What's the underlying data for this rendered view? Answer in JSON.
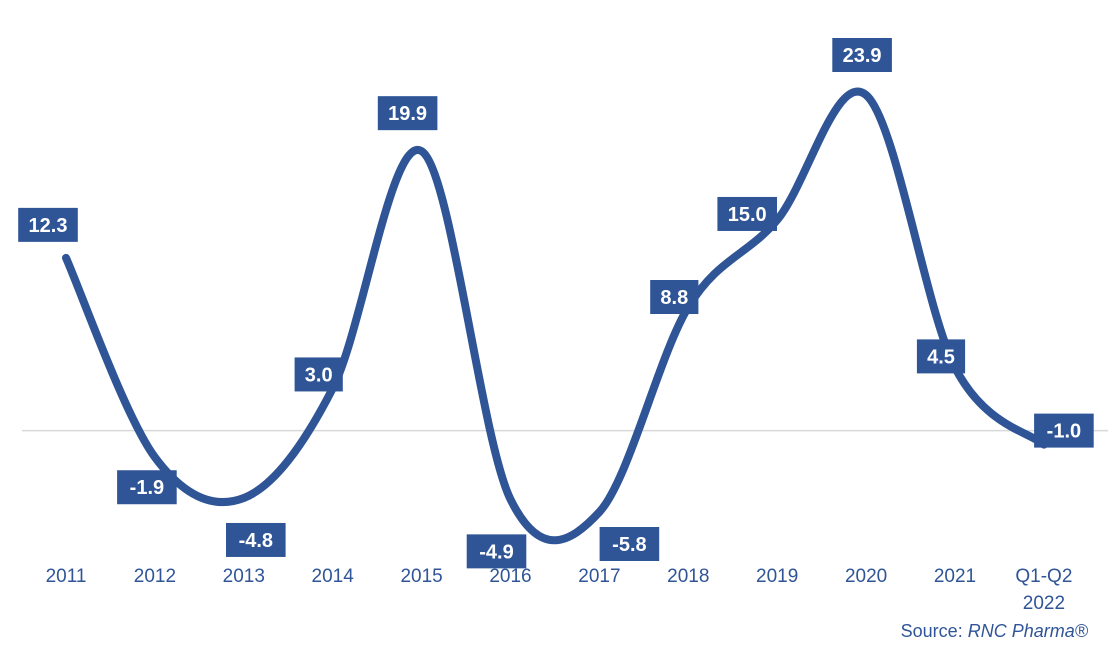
{
  "chart_data": {
    "type": "line",
    "categories": [
      "2011",
      "2012",
      "2013",
      "2014",
      "2015",
      "2016",
      "2017",
      "2018",
      "2019",
      "2020",
      "2021",
      "Q1-Q2\n2022"
    ],
    "series": [
      {
        "values": [
          12.3,
          -1.9,
          -4.8,
          3.0,
          19.9,
          -4.9,
          -5.8,
          8.8,
          15.0,
          23.9,
          4.5,
          -1.0
        ]
      }
    ],
    "data_labels": [
      "12.3",
      "-1.9",
      "-4.8",
      "3.0",
      "19.9",
      "-4.9",
      "-5.8",
      "8.8",
      "15.0",
      "23.9",
      "4.5",
      "-1.0"
    ],
    "title": "",
    "xlabel": "",
    "ylabel": "",
    "ylim": [
      -7,
      27
    ],
    "grid": false,
    "smooth": true,
    "zero_line": true,
    "colors": {
      "line": "#2F5597",
      "label_bg": "#2F5597",
      "label_text": "#FFFFFF",
      "axis_text": "#2F5597",
      "zero_line": "#D9D9D9"
    }
  },
  "source": {
    "prefix": "Source: ",
    "name": "RNC Pharma®"
  }
}
